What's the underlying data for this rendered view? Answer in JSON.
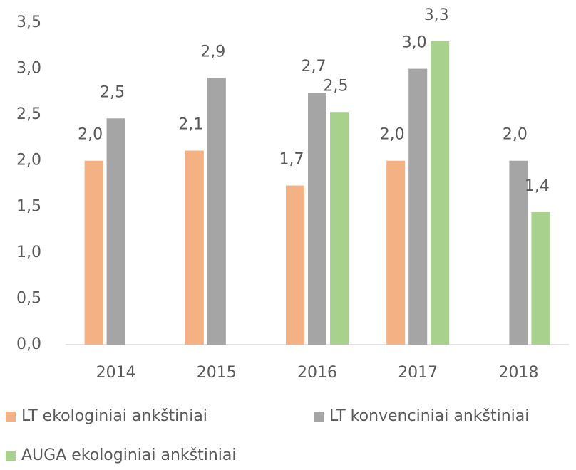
{
  "chart_data": {
    "type": "bar",
    "categories": [
      "2014",
      "2015",
      "2016",
      "2017",
      "2018"
    ],
    "series": [
      {
        "name": "LT ekologiniai ankštiniai",
        "color": "#f4b183",
        "values": [
          2.0,
          2.11,
          1.73,
          2.0,
          null
        ],
        "value_labels": [
          "2,0",
          "2,1",
          "1,7",
          "2,0",
          null
        ]
      },
      {
        "name": "LT konvenciniai ankštiniai",
        "color": "#a5a5a5",
        "values": [
          2.46,
          2.9,
          2.74,
          3.0,
          2.0
        ],
        "value_labels": [
          "2,5",
          "2,9",
          "2,7",
          "3,0",
          "2,0"
        ]
      },
      {
        "name": "AUGA ekologiniai ankštiniai",
        "color": "#a9d18e",
        "values": [
          null,
          null,
          2.53,
          3.3,
          1.44
        ],
        "value_labels": [
          null,
          null,
          "2,5",
          "3,3",
          "1,4"
        ]
      }
    ],
    "ylim": [
      0,
      3.5
    ],
    "yticks": [
      {
        "value": 0,
        "label": "0,0"
      },
      {
        "value": 0.5,
        "label": "0,5"
      },
      {
        "value": 1,
        "label": "1,0"
      },
      {
        "value": 1.5,
        "label": "1,5"
      },
      {
        "value": 2,
        "label": "2,0"
      },
      {
        "value": 2.5,
        "label": "2,5"
      },
      {
        "value": 3,
        "label": "3,0"
      },
      {
        "value": 3.5,
        "label": "3,5"
      }
    ],
    "grid": false,
    "legend": "bottom"
  }
}
